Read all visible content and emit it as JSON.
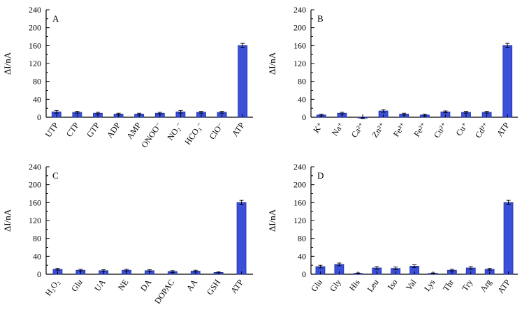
{
  "page": {
    "background": "#ffffff"
  },
  "chart_data": [
    {
      "type": "bar",
      "panel_label": "A",
      "ylabel": "ΔI/nA",
      "ylim": [
        0,
        240
      ],
      "ytick_step": 40,
      "categories": [
        "UTP",
        "CTP",
        "GTP",
        "ADP",
        "AMP",
        "ONOO⁻",
        "NO₂⁻",
        "HCO₃⁻",
        "ClO⁻",
        "ATP"
      ],
      "values": [
        12,
        11,
        9,
        7,
        7,
        9,
        12,
        11,
        11,
        160
      ],
      "errors": [
        3,
        2,
        2,
        2,
        2,
        2,
        3,
        2,
        2,
        5
      ],
      "bar_color": "#3b4fd8",
      "bar_edge": "#1e2fa0",
      "grid": false,
      "legend": "none"
    },
    {
      "type": "bar",
      "panel_label": "B",
      "ylabel": "ΔI/nA",
      "ylim": [
        0,
        240
      ],
      "ytick_step": 40,
      "categories": [
        "K⁺",
        "Na⁺",
        "Ca²⁺",
        "Zn²⁺",
        "Fe³⁺",
        "Fe²⁺",
        "Cu²⁺",
        "Cu⁺",
        "Cd²⁺",
        "ATP"
      ],
      "values": [
        5,
        9,
        -2,
        14,
        7,
        5,
        12,
        11,
        11,
        160
      ],
      "errors": [
        2,
        2,
        1,
        3,
        2,
        2,
        2,
        2,
        2,
        5
      ],
      "bar_color": "#3b4fd8",
      "bar_edge": "#1e2fa0",
      "grid": false,
      "legend": "none"
    },
    {
      "type": "bar",
      "panel_label": "C",
      "ylabel": "ΔI/nA",
      "ylim": [
        0,
        240
      ],
      "ytick_step": 40,
      "categories": [
        "H₂O₂",
        "Glu",
        "UA",
        "NE",
        "DA",
        "DOPAC",
        "AA",
        "GSH",
        "ATP"
      ],
      "values": [
        11,
        9,
        8,
        9,
        8,
        6,
        7,
        4,
        160
      ],
      "errors": [
        2,
        2,
        2,
        2,
        2,
        2,
        2,
        1,
        5
      ],
      "bar_color": "#3b4fd8",
      "bar_edge": "#1e2fa0",
      "grid": false,
      "legend": "none"
    },
    {
      "type": "bar",
      "panel_label": "D",
      "ylabel": "ΔI/nA",
      "ylim": [
        0,
        240
      ],
      "ytick_step": 40,
      "categories": [
        "Glu",
        "Gly",
        "His",
        "Leu",
        "Iso",
        "Val",
        "Lys",
        "Thr",
        "Try",
        "Arg",
        "ATP"
      ],
      "values": [
        17,
        22,
        2,
        14,
        13,
        18,
        2,
        9,
        14,
        11,
        160
      ],
      "errors": [
        3,
        3,
        1,
        3,
        3,
        3,
        1,
        2,
        3,
        2,
        5
      ],
      "bar_color": "#3b4fd8",
      "bar_edge": "#1e2fa0",
      "grid": false,
      "legend": "none"
    }
  ]
}
